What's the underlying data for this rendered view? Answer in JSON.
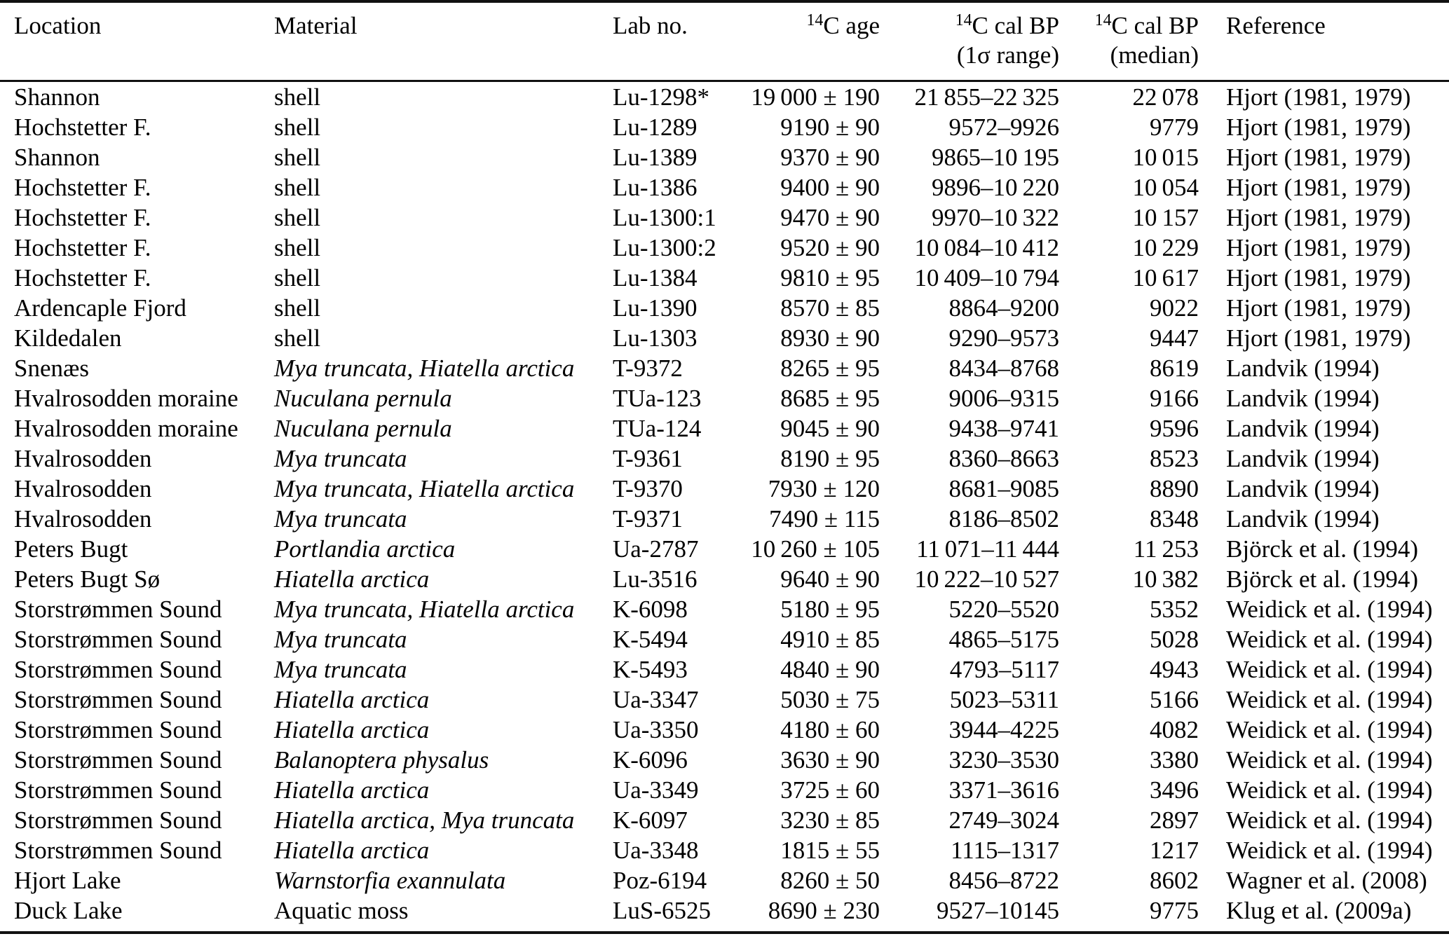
{
  "table_title": "Radiocarbon dates table",
  "columns": [
    {
      "id": "location",
      "sup": "",
      "line1": "Location",
      "line2": ""
    },
    {
      "id": "material",
      "sup": "",
      "line1": "Material",
      "line2": ""
    },
    {
      "id": "lab_no",
      "sup": "",
      "line1": "Lab no.",
      "line2": ""
    },
    {
      "id": "c14_age",
      "sup": "14",
      "line1": "C age",
      "line2": ""
    },
    {
      "id": "cal_range",
      "sup": "14",
      "line1": "C cal BP",
      "line2": "(1σ range)"
    },
    {
      "id": "cal_median",
      "sup": "14",
      "line1": "C cal BP",
      "line2": "(median)"
    },
    {
      "id": "reference",
      "sup": "",
      "line1": "Reference",
      "line2": ""
    }
  ],
  "rows": [
    {
      "location": "Shannon",
      "material": "shell",
      "italic": false,
      "lab": "Lu-1298*",
      "age": "19 000 ± 190",
      "range": "21 855–22 325",
      "median": "22 078",
      "reference": "Hjort (1981, 1979)"
    },
    {
      "location": "Hochstetter F.",
      "material": "shell",
      "italic": false,
      "lab": "Lu-1289",
      "age": "9190 ± 90",
      "range": "9572–9926",
      "median": "9779",
      "reference": "Hjort (1981, 1979)"
    },
    {
      "location": "Shannon",
      "material": "shell",
      "italic": false,
      "lab": "Lu-1389",
      "age": "9370 ± 90",
      "range": "9865–10 195",
      "median": "10 015",
      "reference": "Hjort (1981, 1979)"
    },
    {
      "location": "Hochstetter F.",
      "material": "shell",
      "italic": false,
      "lab": "Lu-1386",
      "age": "9400 ± 90",
      "range": "9896–10 220",
      "median": "10 054",
      "reference": "Hjort (1981, 1979)"
    },
    {
      "location": "Hochstetter F.",
      "material": "shell",
      "italic": false,
      "lab": "Lu-1300:1",
      "age": "9470 ± 90",
      "range": "9970–10 322",
      "median": "10 157",
      "reference": "Hjort (1981, 1979)"
    },
    {
      "location": "Hochstetter F.",
      "material": "shell",
      "italic": false,
      "lab": "Lu-1300:2",
      "age": "9520 ± 90",
      "range": "10 084–10 412",
      "median": "10 229",
      "reference": "Hjort (1981, 1979)"
    },
    {
      "location": "Hochstetter F.",
      "material": "shell",
      "italic": false,
      "lab": "Lu-1384",
      "age": "9810 ± 95",
      "range": "10 409–10 794",
      "median": "10 617",
      "reference": "Hjort (1981, 1979)"
    },
    {
      "location": "Ardencaple Fjord",
      "material": "shell",
      "italic": false,
      "lab": "Lu-1390",
      "age": "8570 ± 85",
      "range": "8864–9200",
      "median": "9022",
      "reference": "Hjort (1981, 1979)"
    },
    {
      "location": "Kildedalen",
      "material": "shell",
      "italic": false,
      "lab": "Lu-1303",
      "age": "8930 ± 90",
      "range": "9290–9573",
      "median": "9447",
      "reference": "Hjort (1981, 1979)"
    },
    {
      "location": "Snenæs",
      "material": "Mya truncata, Hiatella arctica",
      "italic": true,
      "lab": "T-9372",
      "age": "8265 ± 95",
      "range": "8434–8768",
      "median": "8619",
      "reference": "Landvik (1994)"
    },
    {
      "location": "Hvalrosodden moraine",
      "material": "Nuculana pernula",
      "italic": true,
      "lab": "TUa-123",
      "age": "8685 ± 95",
      "range": "9006–9315",
      "median": "9166",
      "reference": "Landvik (1994)"
    },
    {
      "location": "Hvalrosodden moraine",
      "material": "Nuculana pernula",
      "italic": true,
      "lab": "TUa-124",
      "age": "9045 ± 90",
      "range": "9438–9741",
      "median": "9596",
      "reference": "Landvik (1994)"
    },
    {
      "location": "Hvalrosodden",
      "material": "Mya truncata",
      "italic": true,
      "lab": "T-9361",
      "age": "8190 ± 95",
      "range": "8360–8663",
      "median": "8523",
      "reference": "Landvik (1994)"
    },
    {
      "location": "Hvalrosodden",
      "material": "Mya truncata, Hiatella arctica",
      "italic": true,
      "lab": "T-9370",
      "age": "7930 ± 120",
      "range": "8681–9085",
      "median": "8890",
      "reference": "Landvik (1994)"
    },
    {
      "location": "Hvalrosodden",
      "material": "Mya truncata",
      "italic": true,
      "lab": "T-9371",
      "age": "7490 ± 115",
      "range": "8186–8502",
      "median": "8348",
      "reference": "Landvik (1994)"
    },
    {
      "location": "Peters Bugt",
      "material": "Portlandia arctica",
      "italic": true,
      "lab": "Ua-2787",
      "age": "10 260 ± 105",
      "range": "11 071–11 444",
      "median": "11 253",
      "reference": "Björck et al. (1994)"
    },
    {
      "location": "Peters Bugt Sø",
      "material": "Hiatella arctica",
      "italic": true,
      "lab": "Lu-3516",
      "age": "9640 ± 90",
      "range": "10 222–10 527",
      "median": "10 382",
      "reference": "Björck et al. (1994)"
    },
    {
      "location": "Storstrømmen Sound",
      "material": "Mya truncata, Hiatella arctica",
      "italic": true,
      "lab": "K-6098",
      "age": "5180 ± 95",
      "range": "5220–5520",
      "median": "5352",
      "reference": "Weidick et al. (1994)"
    },
    {
      "location": "Storstrømmen Sound",
      "material": "Mya truncata",
      "italic": true,
      "lab": "K-5494",
      "age": "4910 ± 85",
      "range": "4865–5175",
      "median": "5028",
      "reference": "Weidick et al. (1994)"
    },
    {
      "location": "Storstrømmen Sound",
      "material": "Mya truncata",
      "italic": true,
      "lab": "K-5493",
      "age": "4840 ± 90",
      "range": "4793–5117",
      "median": "4943",
      "reference": "Weidick et al. (1994)"
    },
    {
      "location": "Storstrømmen Sound",
      "material": "Hiatella arctica",
      "italic": true,
      "lab": "Ua-3347",
      "age": "5030 ± 75",
      "range": "5023–5311",
      "median": "5166",
      "reference": "Weidick et al. (1994)"
    },
    {
      "location": "Storstrømmen Sound",
      "material": "Hiatella arctica",
      "italic": true,
      "lab": "Ua-3350",
      "age": "4180 ± 60",
      "range": "3944–4225",
      "median": "4082",
      "reference": "Weidick et al. (1994)"
    },
    {
      "location": "Storstrømmen Sound",
      "material": "Balanoptera physalus",
      "italic": true,
      "lab": "K-6096",
      "age": "3630 ± 90",
      "range": "3230–3530",
      "median": "3380",
      "reference": "Weidick et al. (1994)"
    },
    {
      "location": "Storstrømmen Sound",
      "material": "Hiatella arctica",
      "italic": true,
      "lab": "Ua-3349",
      "age": "3725 ± 60",
      "range": "3371–3616",
      "median": "3496",
      "reference": "Weidick et al. (1994)"
    },
    {
      "location": "Storstrømmen Sound",
      "material": "Hiatella arctica, Mya truncata",
      "italic": true,
      "lab": "K-6097",
      "age": "3230 ± 85",
      "range": "2749–3024",
      "median": "2897",
      "reference": "Weidick et al. (1994)"
    },
    {
      "location": "Storstrømmen Sound",
      "material": "Hiatella arctica",
      "italic": true,
      "lab": "Ua-3348",
      "age": "1815 ± 55",
      "range": "1115–1317",
      "median": "1217",
      "reference": "Weidick et al. (1994)"
    },
    {
      "location": "Hjort Lake",
      "material": "Warnstorfia exannulata",
      "italic": true,
      "lab": "Poz-6194",
      "age": "8260 ± 50",
      "range": "8456–8722",
      "median": "8602",
      "reference": "Wagner et al. (2008)"
    },
    {
      "location": "Duck Lake",
      "material": "Aquatic moss",
      "italic": false,
      "lab": "LuS-6525",
      "age": "8690 ± 230",
      "range": "9527–10145",
      "median": "9775",
      "reference": "Klug et al. (2009a)"
    }
  ]
}
